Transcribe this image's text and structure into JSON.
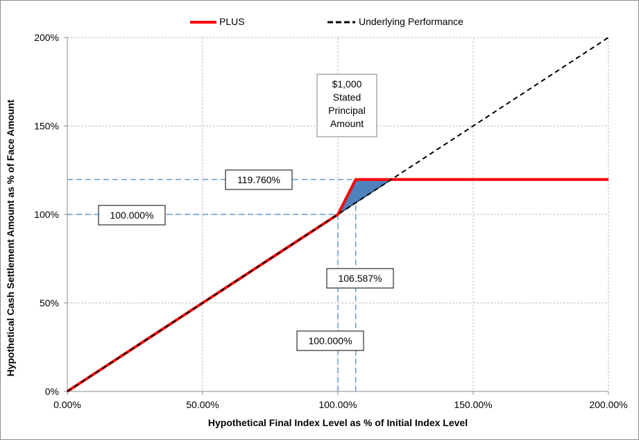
{
  "chart_data": {
    "type": "line",
    "xlabel": "Hypothetical Final Index Level as % of Initial Index Level",
    "ylabel": "Hypothetical Cash Settlement Amount as % of Face Amount",
    "xlim": [
      0,
      200
    ],
    "ylim": [
      0,
      200
    ],
    "x_ticks": [
      0,
      50,
      100,
      150,
      200
    ],
    "x_tick_labels": [
      "0.00%",
      "50.00%",
      "100.00%",
      "150.00%",
      "200.00%"
    ],
    "y_ticks": [
      0,
      50,
      100,
      150,
      200
    ],
    "y_tick_labels": [
      "0%",
      "50%",
      "100%",
      "150%",
      "200%"
    ],
    "grid": true,
    "legend_position": "top-center",
    "series": [
      {
        "name": "PLUS",
        "color": "#ff0000",
        "style": "solid",
        "x": [
          0,
          100,
          106.587,
          200
        ],
        "y": [
          0,
          100,
          119.76,
          119.76
        ]
      },
      {
        "name": "Underlying Performance",
        "color": "#000000",
        "style": "dashed",
        "x": [
          0,
          200
        ],
        "y": [
          0,
          200
        ]
      }
    ],
    "shaded_region": {
      "color": "#4f81bd",
      "points": [
        [
          100,
          100
        ],
        [
          106.587,
          119.76
        ],
        [
          119.76,
          119.76
        ]
      ]
    },
    "reference_lines": [
      {
        "orientation": "horizontal",
        "value": 100,
        "from": 0,
        "to": 100
      },
      {
        "orientation": "horizontal",
        "value": 119.76,
        "from": 0,
        "to": 106.587
      },
      {
        "orientation": "vertical",
        "value": 100,
        "from": 0,
        "to": 100
      },
      {
        "orientation": "vertical",
        "value": 106.587,
        "from": 0,
        "to": 119.76
      }
    ],
    "annotations": [
      {
        "id": "stated-principal",
        "lines": [
          "$1,000",
          "Stated",
          "Principal",
          "Amount"
        ]
      },
      {
        "id": "label-y-119",
        "text": "119.760%"
      },
      {
        "id": "label-y-100",
        "text": "100.000%"
      },
      {
        "id": "label-x-106",
        "text": "106.587%"
      },
      {
        "id": "label-x-100",
        "text": "100.000%"
      }
    ]
  }
}
